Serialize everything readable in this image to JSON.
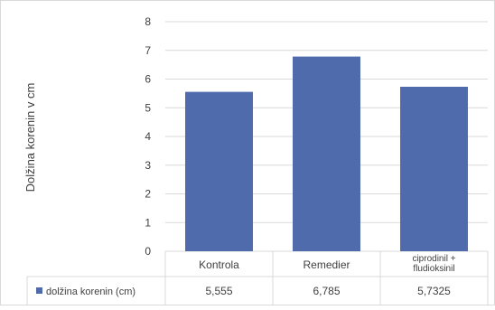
{
  "chart_data": {
    "type": "bar",
    "categories": [
      "Kontrola",
      "Remedier",
      [
        "ciprodinil +",
        "fludioksinil"
      ]
    ],
    "series": [
      {
        "name": "dolžina korenin (cm)",
        "values": [
          5.555,
          6.785,
          5.7325
        ],
        "color": "#4f6bab"
      }
    ],
    "table_values": [
      "5,555",
      "6,785",
      "5,7325"
    ],
    "ylabel": "Dolžina korenin v cm",
    "ylim": [
      0,
      8
    ],
    "yticks": [
      0,
      1,
      2,
      3,
      4,
      5,
      6,
      7,
      8
    ],
    "grid": true,
    "legend": "data-table"
  }
}
